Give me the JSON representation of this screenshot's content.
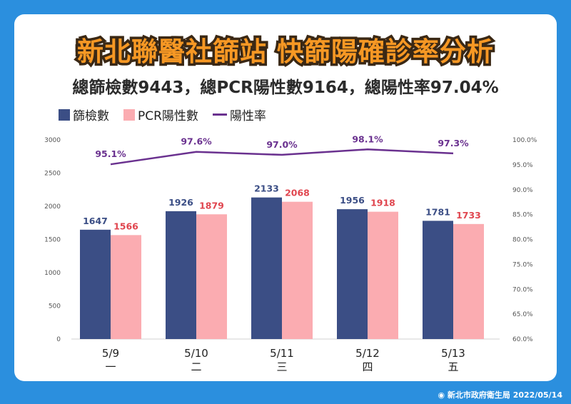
{
  "title": "新北聯醫社篩站 快篩陽確診率分析",
  "subtitle": "總篩檢數9443，總PCR陽性數9164，總陽性率97.04%",
  "credit": "新北市政府衛生局 2022/05/14",
  "colors": {
    "background": "#2b8fde",
    "title": "#f79824",
    "screened": "#3b4e85",
    "pcr": "#fbacb1",
    "rate": "#6a318f",
    "pcr_label": "#e0464f",
    "screened_label": "#3b4e85"
  },
  "chart_data": {
    "type": "bar",
    "categories": [
      "5/9",
      "5/10",
      "5/11",
      "5/12",
      "5/13"
    ],
    "weekday_labels": [
      "一",
      "二",
      "三",
      "四",
      "五"
    ],
    "series": [
      {
        "name": "篩檢數",
        "values": [
          1647,
          1926,
          2133,
          1956,
          1781
        ]
      },
      {
        "name": "PCR陽性數",
        "values": [
          1566,
          1879,
          2068,
          1918,
          1733
        ]
      }
    ],
    "line_series": {
      "name": "陽性率",
      "values": [
        95.1,
        97.6,
        97.0,
        98.1,
        97.3
      ],
      "labels": [
        "95.1%",
        "97.6%",
        "97.0%",
        "98.1%",
        "97.3%"
      ]
    },
    "ylim": [
      0,
      3000
    ],
    "y_ticks": [
      "0",
      "500",
      "1000",
      "1500",
      "2000",
      "2500",
      "3000"
    ],
    "y2lim": [
      60,
      100
    ],
    "y2_ticks": [
      "60.0%",
      "65.0%",
      "70.0%",
      "75.0%",
      "80.0%",
      "85.0%",
      "90.0%",
      "95.0%",
      "100.0%"
    ],
    "legend_position": "top-left",
    "grid": false
  }
}
